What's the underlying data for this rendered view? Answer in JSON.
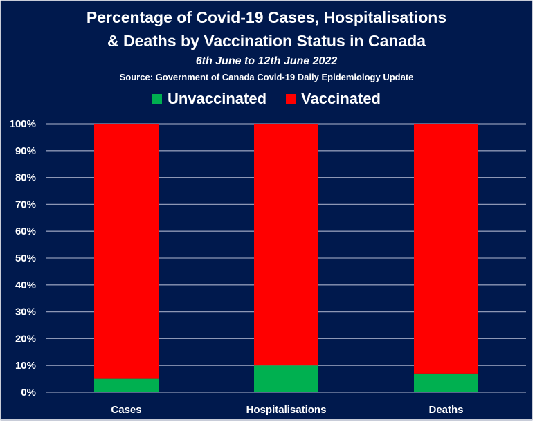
{
  "chart_data": {
    "type": "bar",
    "stacked": true,
    "title": "Percentage of Covid-19 Cases, Hospitalisations & Deaths by Vaccination Status in Canada",
    "title_lines": [
      "Percentage of Covid-19 Cases, Hospitalisations",
      "& Deaths by Vaccination Status in Canada"
    ],
    "subtitle": "6th June to 12th June 2022",
    "source": "Source: Government of Canada  Covid-19 Daily Epidemiology Update",
    "categories": [
      "Cases",
      "Hospitalisations",
      "Deaths"
    ],
    "series": [
      {
        "name": "Unvaccinated",
        "color": "#00b050",
        "values": [
          5,
          10,
          7
        ]
      },
      {
        "name": "Vaccinated",
        "color": "#ff0000",
        "values": [
          95,
          90,
          93
        ]
      }
    ],
    "xlabel": "",
    "ylabel": "",
    "ylim": [
      0,
      100
    ],
    "yticks": [
      "0%",
      "10%",
      "20%",
      "30%",
      "40%",
      "50%",
      "60%",
      "70%",
      "80%",
      "90%",
      "100%"
    ],
    "grid": true,
    "legend_position": "top",
    "background": "#00194d"
  }
}
